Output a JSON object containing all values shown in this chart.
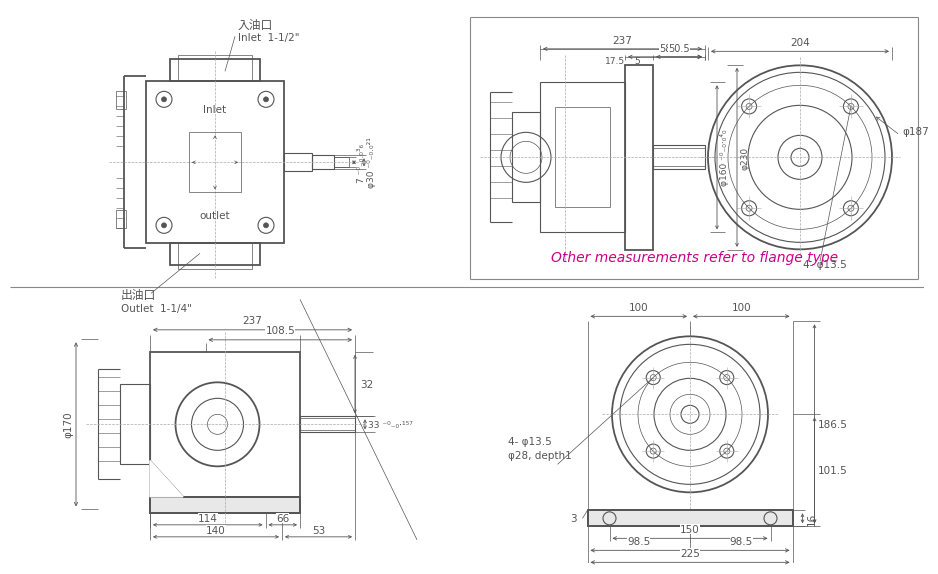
{
  "bg_color": "#ffffff",
  "line_color": "#555555",
  "dim_color": "#555555",
  "magenta_color": "#cc0088",
  "centerline_color": "#aaaaaa",
  "border_color": "#888888",
  "fig_width": 9.14,
  "fig_height": 5.54,
  "texts": {
    "inlet_cn": "入油口",
    "inlet_en": "Inlet  1-1/2\"",
    "outlet_cn": "出油口",
    "outlet_en": "Outlet  1-1/4\"",
    "inlet_label": "Inlet",
    "outlet_label": "outlet",
    "shaft_key": "7 ⁻⁰₋₀⋅₀³₆",
    "shaft_dia": "φ30 ⁻⁰₋₀⋅₀²¹",
    "flange_note": "Other measurements refer to flange type",
    "phi170": "φ170",
    "dim_237a": "237",
    "dim_1085": "108.5",
    "dim_32": "32",
    "dim_33": "33 ⁻⁰₋₀⋅¹⁵⁷",
    "dim_114": "114",
    "dim_66": "66",
    "dim_140": "140",
    "dim_53": "53",
    "dim_237b": "237",
    "dim_58": "58",
    "dim_505": "50.5",
    "dim_175": "17.5",
    "dim_5": "5",
    "dim_phi160": "φ160 ⁻⁰₋₀⋅₀⁴₀",
    "dim_phi230": "φ230",
    "dim_204": "204",
    "dim_phi187": "φ187",
    "dim_4phi135a": "4- φ13.5",
    "dim_100a": "100",
    "dim_100b": "100",
    "dim_1865": "186.5",
    "dim_1015": "101.5",
    "dim_3": "3",
    "dim_16": "16",
    "dim_4phi135b": "4- φ13.5",
    "dim_phi28": "φ28, depth1",
    "dim_150": "150",
    "dim_985a": "98.5",
    "dim_985b": "98.5",
    "dim_225": "225"
  }
}
